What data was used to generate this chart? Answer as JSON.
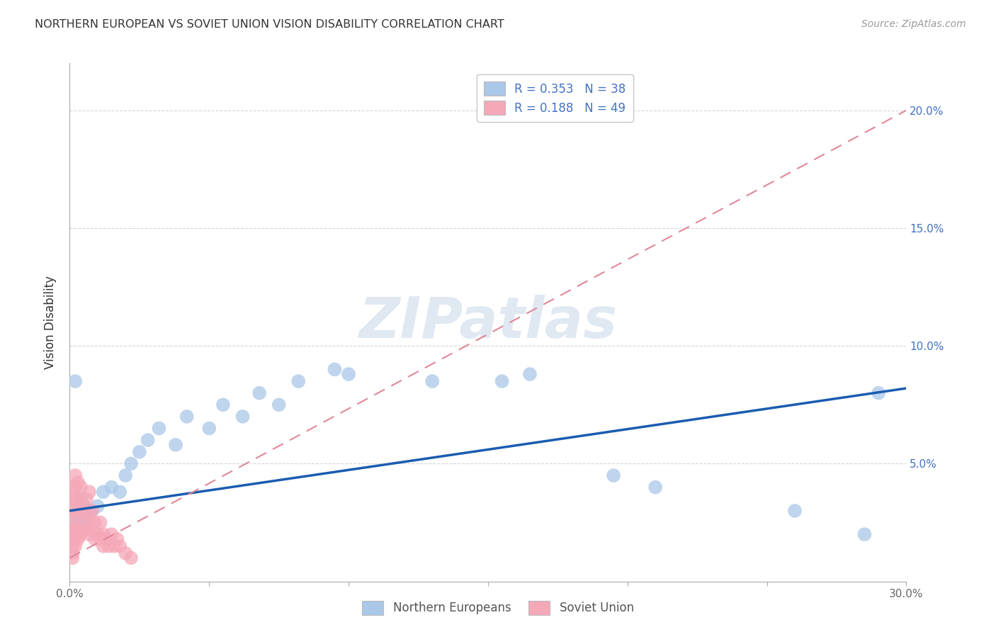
{
  "title": "NORTHERN EUROPEAN VS SOVIET UNION VISION DISABILITY CORRELATION CHART",
  "source": "Source: ZipAtlas.com",
  "xlabel": "",
  "ylabel": "Vision Disability",
  "xlim": [
    0.0,
    0.3
  ],
  "ylim": [
    0.0,
    0.22
  ],
  "xticks": [
    0.0,
    0.05,
    0.1,
    0.15,
    0.2,
    0.25,
    0.3
  ],
  "yticks": [
    0.05,
    0.1,
    0.15,
    0.2
  ],
  "xticklabels": [
    "0.0%",
    "",
    "",
    "",
    "",
    "",
    "30.0%"
  ],
  "yticklabels_right": [
    "5.0%",
    "10.0%",
    "15.0%",
    "20.0%"
  ],
  "legend1_label": "R = 0.353   N = 38",
  "legend2_label": "R = 0.188   N = 49",
  "legend_bottom_label1": "Northern Europeans",
  "legend_bottom_label2": "Soviet Union",
  "ne_color": "#aac8e8",
  "su_color": "#f5a8b8",
  "ne_edge_color": "#aac8e8",
  "su_edge_color": "#f5a8b8",
  "ne_line_color": "#1a5cb0",
  "su_line_color": "#e08898",
  "watermark": "ZIPatlas",
  "ne_R": 0.353,
  "ne_N": 38,
  "su_R": 0.188,
  "su_N": 49,
  "ne_x": [
    0.001,
    0.002,
    0.003,
    0.003,
    0.004,
    0.004,
    0.005,
    0.005,
    0.006,
    0.008,
    0.01,
    0.012,
    0.015,
    0.018,
    0.02,
    0.022,
    0.025,
    0.028,
    0.032,
    0.038,
    0.042,
    0.05,
    0.055,
    0.062,
    0.068,
    0.075,
    0.082,
    0.095,
    0.1,
    0.13,
    0.155,
    0.165,
    0.195,
    0.21,
    0.26,
    0.285,
    0.29,
    0.002
  ],
  "ne_y": [
    0.02,
    0.025,
    0.022,
    0.03,
    0.025,
    0.035,
    0.028,
    0.032,
    0.03,
    0.03,
    0.032,
    0.038,
    0.04,
    0.038,
    0.045,
    0.05,
    0.055,
    0.06,
    0.065,
    0.058,
    0.07,
    0.065,
    0.075,
    0.07,
    0.08,
    0.075,
    0.085,
    0.09,
    0.088,
    0.085,
    0.085,
    0.088,
    0.045,
    0.04,
    0.03,
    0.02,
    0.08,
    0.085
  ],
  "su_x": [
    0.001,
    0.001,
    0.001,
    0.001,
    0.001,
    0.001,
    0.001,
    0.001,
    0.001,
    0.001,
    0.002,
    0.002,
    0.002,
    0.002,
    0.002,
    0.002,
    0.002,
    0.003,
    0.003,
    0.003,
    0.003,
    0.003,
    0.004,
    0.004,
    0.004,
    0.005,
    0.005,
    0.006,
    0.006,
    0.007,
    0.007,
    0.007,
    0.008,
    0.008,
    0.009,
    0.009,
    0.01,
    0.011,
    0.011,
    0.012,
    0.012,
    0.013,
    0.014,
    0.015,
    0.016,
    0.017,
    0.018,
    0.02,
    0.022
  ],
  "su_y": [
    0.01,
    0.012,
    0.015,
    0.018,
    0.02,
    0.022,
    0.025,
    0.03,
    0.035,
    0.04,
    0.015,
    0.018,
    0.022,
    0.03,
    0.035,
    0.04,
    0.045,
    0.018,
    0.022,
    0.028,
    0.035,
    0.042,
    0.02,
    0.03,
    0.04,
    0.022,
    0.032,
    0.025,
    0.035,
    0.02,
    0.028,
    0.038,
    0.022,
    0.03,
    0.018,
    0.025,
    0.02,
    0.025,
    0.018,
    0.02,
    0.015,
    0.018,
    0.015,
    0.02,
    0.015,
    0.018,
    0.015,
    0.012,
    0.01
  ],
  "ne_line_x0": 0.0,
  "ne_line_x1": 0.3,
  "ne_line_y0": 0.03,
  "ne_line_y1": 0.082,
  "su_line_x0": 0.0,
  "su_line_x1": 0.3,
  "su_line_y0": 0.01,
  "su_line_y1": 0.2
}
